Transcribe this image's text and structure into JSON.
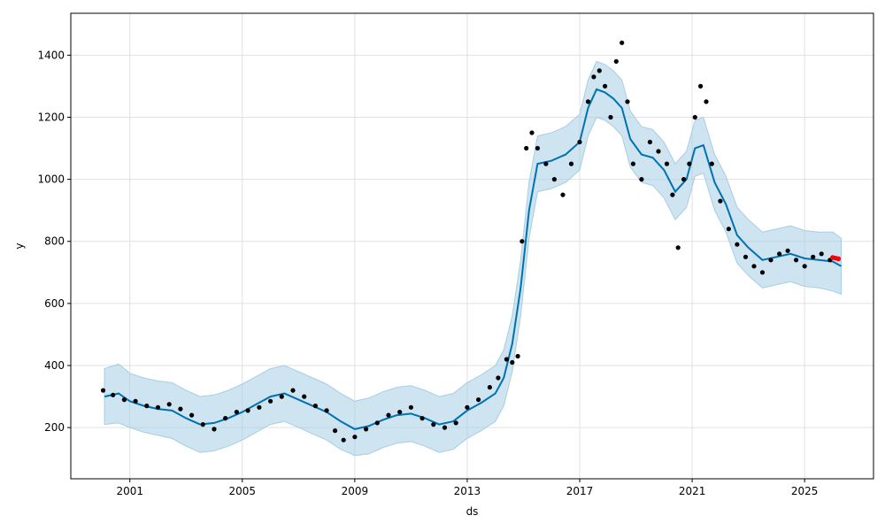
{
  "chart_data": {
    "type": "line",
    "title": "",
    "xlabel": "ds",
    "ylabel": "y",
    "xlim": [
      1998.9,
      2027.45
    ],
    "ylim": [
      35,
      1535
    ],
    "x_ticks": [
      2001,
      2005,
      2009,
      2013,
      2017,
      2021,
      2025
    ],
    "x_tick_labels": [
      "2001",
      "2005",
      "2009",
      "2013",
      "2017",
      "2021",
      "2025"
    ],
    "y_ticks": [
      200,
      400,
      600,
      800,
      1000,
      1200,
      1400
    ],
    "y_tick_labels": [
      "200",
      "400",
      "600",
      "800",
      "1000",
      "1200",
      "1400"
    ],
    "grid": true,
    "legend": "none",
    "colors": {
      "forecast": "#0072B2",
      "interval": "#a6cee3",
      "actual": "#000000",
      "future_actual": "#ff0000"
    },
    "series": [
      {
        "kind": "forecast_line",
        "x": [
          2000.1,
          2000.6,
          2001.0,
          2001.5,
          2002.0,
          2002.5,
          2003.0,
          2003.5,
          2004.0,
          2004.5,
          2005.0,
          2005.5,
          2006.0,
          2006.5,
          2007.0,
          2007.5,
          2008.0,
          2008.5,
          2009.0,
          2009.5,
          2010.0,
          2010.5,
          2011.0,
          2011.5,
          2012.0,
          2012.5,
          2013.0,
          2013.5,
          2014.0,
          2014.3,
          2014.6,
          2014.9,
          2015.2,
          2015.5,
          2016.0,
          2016.5,
          2017.0,
          2017.3,
          2017.6,
          2017.9,
          2018.2,
          2018.5,
          2018.8,
          2019.2,
          2019.6,
          2020.0,
          2020.4,
          2020.8,
          2021.1,
          2021.4,
          2021.8,
          2022.2,
          2022.6,
          2023.0,
          2023.5,
          2024.0,
          2024.5,
          2025.0,
          2025.5,
          2026.0,
          2026.3
        ],
        "y": [
          300,
          310,
          285,
          270,
          260,
          255,
          230,
          210,
          215,
          230,
          250,
          275,
          300,
          310,
          290,
          270,
          250,
          220,
          195,
          205,
          225,
          240,
          245,
          230,
          210,
          220,
          255,
          280,
          310,
          360,
          470,
          650,
          900,
          1050,
          1060,
          1080,
          1120,
          1230,
          1290,
          1280,
          1260,
          1230,
          1130,
          1080,
          1070,
          1030,
          960,
          1000,
          1100,
          1110,
          990,
          920,
          820,
          780,
          740,
          750,
          760,
          745,
          740,
          735,
          720
        ]
      },
      {
        "kind": "uncertainty_interval",
        "x": [
          2000.1,
          2000.6,
          2001.0,
          2001.5,
          2002.0,
          2002.5,
          2003.0,
          2003.5,
          2004.0,
          2004.5,
          2005.0,
          2005.5,
          2006.0,
          2006.5,
          2007.0,
          2007.5,
          2008.0,
          2008.5,
          2009.0,
          2009.5,
          2010.0,
          2010.5,
          2011.0,
          2011.5,
          2012.0,
          2012.5,
          2013.0,
          2013.5,
          2014.0,
          2014.3,
          2014.6,
          2014.9,
          2015.2,
          2015.5,
          2016.0,
          2016.5,
          2017.0,
          2017.3,
          2017.6,
          2017.9,
          2018.2,
          2018.5,
          2018.8,
          2019.2,
          2019.6,
          2020.0,
          2020.4,
          2020.8,
          2021.1,
          2021.4,
          2021.8,
          2022.2,
          2022.6,
          2023.0,
          2023.5,
          2024.0,
          2024.5,
          2025.0,
          2025.5,
          2026.0,
          2026.3
        ],
        "lower": [
          210,
          215,
          200,
          185,
          175,
          165,
          140,
          120,
          125,
          140,
          160,
          185,
          210,
          220,
          200,
          180,
          160,
          130,
          110,
          115,
          135,
          150,
          155,
          140,
          120,
          130,
          165,
          190,
          220,
          270,
          380,
          560,
          810,
          960,
          970,
          990,
          1030,
          1140,
          1200,
          1190,
          1170,
          1140,
          1040,
          990,
          980,
          940,
          870,
          910,
          1010,
          1020,
          900,
          830,
          730,
          690,
          650,
          660,
          670,
          655,
          650,
          640,
          630
        ],
        "upper": [
          390,
          405,
          375,
          360,
          350,
          345,
          320,
          300,
          305,
          320,
          340,
          365,
          390,
          400,
          380,
          360,
          340,
          310,
          285,
          295,
          315,
          330,
          335,
          320,
          300,
          310,
          345,
          370,
          400,
          450,
          560,
          740,
          990,
          1140,
          1150,
          1170,
          1210,
          1320,
          1380,
          1370,
          1350,
          1320,
          1220,
          1170,
          1160,
          1120,
          1050,
          1090,
          1190,
          1200,
          1080,
          1010,
          910,
          870,
          830,
          840,
          850,
          835,
          830,
          830,
          810
        ]
      },
      {
        "kind": "actual_points",
        "x": [
          2000.05,
          2000.4,
          2000.8,
          2001.2,
          2001.6,
          2002.0,
          2002.4,
          2002.8,
          2003.2,
          2003.6,
          2004.0,
          2004.4,
          2004.8,
          2005.2,
          2005.6,
          2006.0,
          2006.4,
          2006.8,
          2007.2,
          2007.6,
          2008.0,
          2008.3,
          2008.6,
          2009.0,
          2009.4,
          2009.8,
          2010.2,
          2010.6,
          2011.0,
          2011.4,
          2011.8,
          2012.2,
          2012.6,
          2013.0,
          2013.4,
          2013.8,
          2014.1,
          2014.4,
          2014.6,
          2014.8,
          2014.95,
          2015.1,
          2015.3,
          2015.5,
          2015.8,
          2016.1,
          2016.4,
          2016.7,
          2017.0,
          2017.3,
          2017.5,
          2017.7,
          2017.9,
          2018.1,
          2018.3,
          2018.5,
          2018.7,
          2018.9,
          2019.2,
          2019.5,
          2019.8,
          2020.1,
          2020.3,
          2020.5,
          2020.7,
          2020.9,
          2021.1,
          2021.3,
          2021.5,
          2021.7,
          2022.0,
          2022.3,
          2022.6,
          2022.9,
          2023.2,
          2023.5,
          2023.8,
          2024.1,
          2024.4,
          2024.7,
          2025.0,
          2025.3,
          2025.6,
          2025.9
        ],
        "y": [
          320,
          305,
          290,
          285,
          270,
          265,
          275,
          260,
          240,
          210,
          195,
          230,
          250,
          255,
          265,
          285,
          300,
          320,
          300,
          270,
          255,
          190,
          160,
          170,
          195,
          215,
          240,
          250,
          265,
          230,
          210,
          200,
          215,
          265,
          290,
          330,
          360,
          420,
          410,
          430,
          800,
          1100,
          1150,
          1100,
          1050,
          1000,
          950,
          1050,
          1120,
          1250,
          1330,
          1350,
          1300,
          1200,
          1380,
          1440,
          1250,
          1050,
          1000,
          1120,
          1090,
          1050,
          950,
          780,
          1000,
          1050,
          1200,
          1300,
          1250,
          1050,
          930,
          840,
          790,
          750,
          720,
          700,
          740,
          760,
          770,
          740,
          720,
          750,
          760,
          740
        ]
      },
      {
        "kind": "future_points",
        "x": [
          2026.0,
          2026.1,
          2026.2
        ],
        "y": [
          748,
          746,
          744
        ]
      }
    ]
  }
}
